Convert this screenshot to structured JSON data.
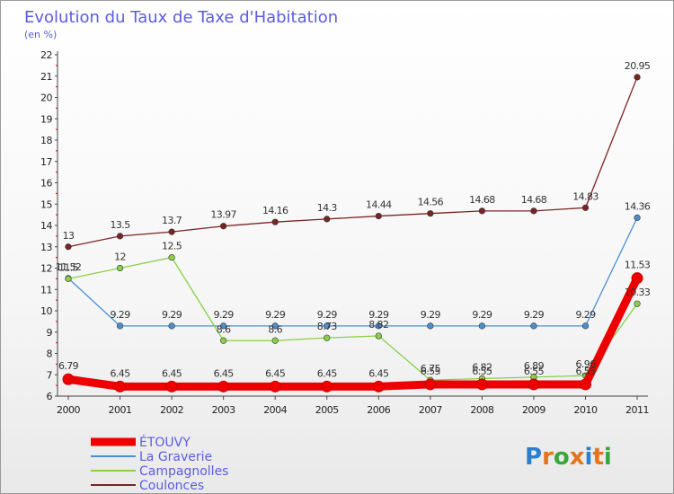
{
  "chart_data": {
    "type": "line",
    "title": "Evolution du Taux de Taxe d'Habitation",
    "ylabel": "(en %)",
    "xlabel": "",
    "categories": [
      "2000",
      "2001",
      "2002",
      "2003",
      "2004",
      "2005",
      "2006",
      "2007",
      "2008",
      "2009",
      "2010",
      "2011"
    ],
    "ylim": [
      6,
      22
    ],
    "yticks": [
      6,
      7,
      8,
      9,
      10,
      11,
      12,
      13,
      14,
      15,
      16,
      17,
      18,
      19,
      20,
      21,
      22
    ],
    "grid": false,
    "legend_position": "bottom-left",
    "series": [
      {
        "name": "Coulonces",
        "color": "#7a2424",
        "values": [
          13,
          13.5,
          13.7,
          13.97,
          14.16,
          14.3,
          14.44,
          14.56,
          14.68,
          14.68,
          14.83,
          20.95
        ],
        "labels": [
          "13",
          "13.5",
          "13.7",
          "13.97",
          "14.16",
          "14.3",
          "14.44",
          "14.56",
          "14.68",
          "14.68",
          "14.83",
          "20.95"
        ]
      },
      {
        "name": "La Graverie",
        "color": "#4a90d0",
        "values": [
          11.52,
          9.29,
          9.29,
          9.29,
          9.29,
          9.29,
          9.29,
          9.29,
          9.29,
          9.29,
          9.29,
          14.36
        ],
        "labels": [
          "11.52",
          "9.29",
          "9.29",
          "9.29",
          "9.29",
          "9.29",
          "9.29",
          "9.29",
          "9.29",
          "9.29",
          "9.29",
          "14.36"
        ]
      },
      {
        "name": "Campagnolles",
        "color": "#88d048",
        "values": [
          11.5,
          12,
          12.5,
          8.6,
          8.6,
          8.73,
          8.82,
          6.75,
          6.82,
          6.89,
          6.96,
          10.33
        ],
        "labels": [
          "11.5",
          "12",
          "12.5",
          "8.6",
          "8.6",
          "8.73",
          "8.82",
          "6.75",
          "6.82",
          "6.89",
          "6.96",
          "10.33"
        ]
      },
      {
        "name": "ÉTOUVY",
        "color": "#ee0000",
        "values": [
          6.79,
          6.45,
          6.45,
          6.45,
          6.45,
          6.45,
          6.45,
          6.55,
          6.55,
          6.55,
          6.55,
          11.53
        ],
        "labels": [
          "6.79",
          "6.45",
          "6.45",
          "6.45",
          "6.45",
          "6.45",
          "6.45",
          "6.55",
          "6.55",
          "6.55",
          "6.55",
          "11.53"
        ]
      }
    ],
    "legend": [
      "ÉTOUVY",
      "La Graverie",
      "Campagnolles",
      "Coulonces"
    ]
  },
  "brand": {
    "text": "Proxiti",
    "letters": [
      "P",
      "r",
      "o",
      "x",
      "i",
      "t",
      "i"
    ],
    "colors": [
      "#2c7fd0",
      "#e7731b",
      "#3aa63a",
      "#e7731b",
      "#2c7fd0",
      "#e7731b",
      "#3aa63a"
    ]
  }
}
